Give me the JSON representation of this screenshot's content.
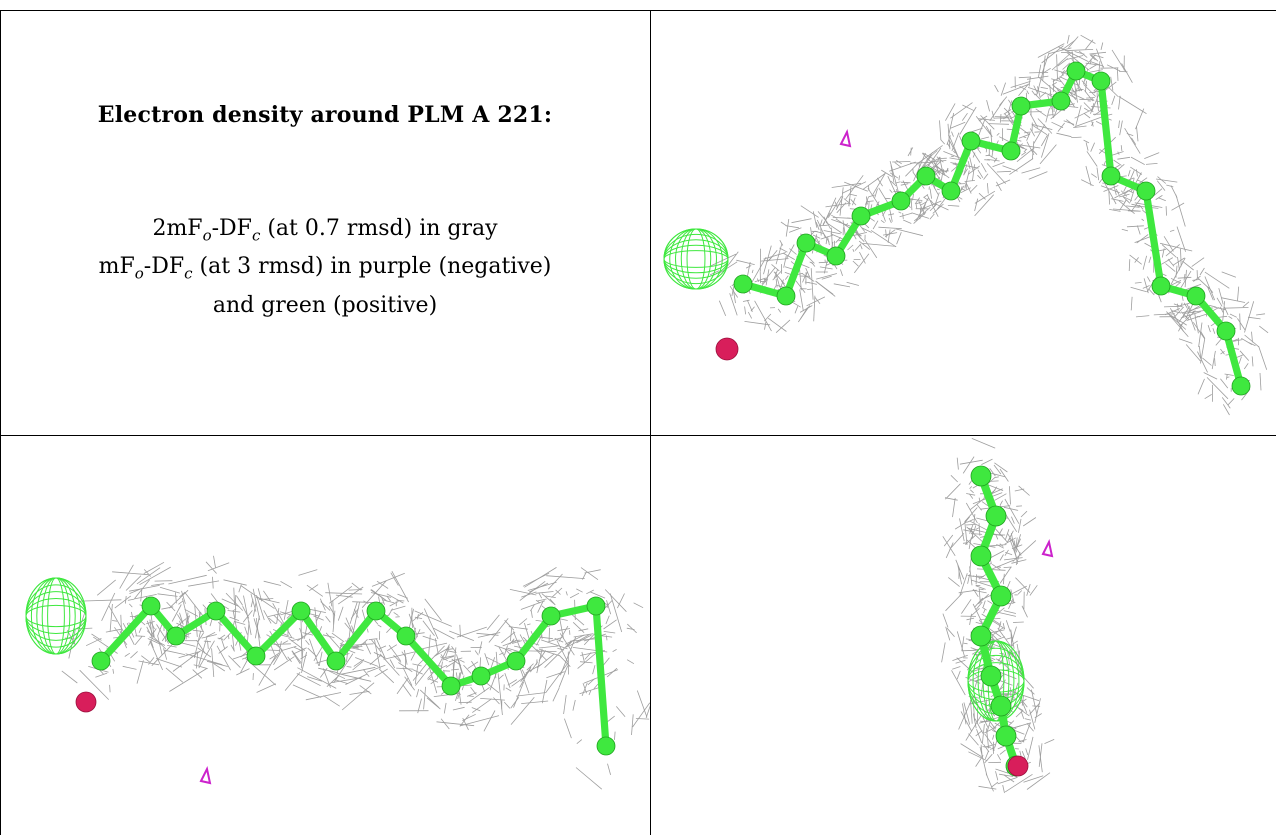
{
  "caption": {
    "title": "Electron density around PLM A 221:",
    "line1": {
      "a": "2mF",
      "sub_o": "o",
      "b": "-DF",
      "sub_c": "c",
      "rest": " (at 0.7 rmsd) in gray"
    },
    "line2": {
      "a": "mF",
      "sub_o": "o",
      "b": "-DF",
      "sub_c": "c",
      "rest": " (at 3 rmsd) in purple (negative)"
    },
    "line3": "and green (positive)"
  },
  "colors": {
    "mesh_gray": "#8c8c8c",
    "atom_green": "#3fe83f",
    "oxygen_pink": "#d81e5b",
    "negative_purple": "#cc22cc",
    "border": "#000000"
  },
  "views": [
    {
      "name": "view-top-right"
    },
    {
      "name": "view-bottom-left"
    },
    {
      "name": "view-bottom-right"
    }
  ]
}
